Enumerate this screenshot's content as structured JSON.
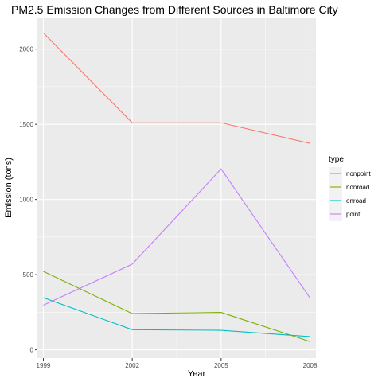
{
  "chart_data": {
    "type": "line",
    "title": "PM2.5 Emission Changes from Different Sources in Baltimore City",
    "xlabel": "Year",
    "ylabel": "Emission (tons)",
    "x": [
      1999,
      2002,
      2005,
      2008
    ],
    "x_ticks": [
      "1999",
      "2002",
      "2005",
      "2008"
    ],
    "y_ticks": [
      "0",
      "500",
      "1000",
      "1500",
      "2000"
    ],
    "y_tick_values": [
      0,
      500,
      1000,
      1500,
      2000
    ],
    "xlim": [
      1998.8,
      2008.2
    ],
    "ylim": [
      -55,
      2210
    ],
    "legend": {
      "title": "type",
      "placement": "right"
    },
    "grid": true,
    "series": [
      {
        "name": "nonpoint",
        "color": "#F8766D",
        "values": [
          2108,
          1510,
          1510,
          1373
        ]
      },
      {
        "name": "nonroad",
        "color": "#7CAE00",
        "values": [
          522,
          241,
          249,
          55
        ]
      },
      {
        "name": "onroad",
        "color": "#00BFC4",
        "values": [
          347,
          134,
          130,
          88
        ]
      },
      {
        "name": "point",
        "color": "#C77CFF",
        "values": [
          297,
          570,
          1203,
          345
        ]
      }
    ]
  }
}
